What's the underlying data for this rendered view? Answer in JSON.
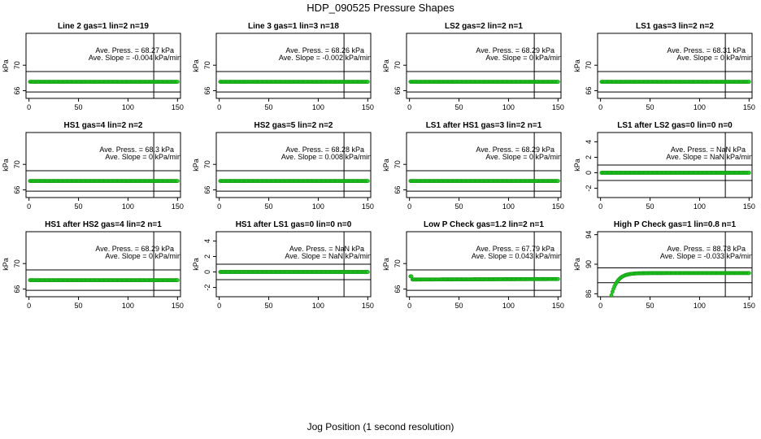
{
  "title": "HDP_090525  Pressure Shapes",
  "xlabel": "Jog Position (1 second resolution)",
  "colors": {
    "points": "#22cc22",
    "point_edge": "#119911",
    "lines": "#000000"
  },
  "chart_data": [
    {
      "type": "scatter",
      "title": "Line 2 gas=1 lin=2 n=19",
      "ylabel": "kPa",
      "xlim": [
        -3,
        153
      ],
      "ylim": [
        64.8,
        75.0
      ],
      "xticks": [
        0,
        50,
        100,
        150
      ],
      "yticks": [
        66,
        70
      ],
      "hlines": [
        65.8,
        69.0
      ],
      "vline": 126,
      "ann_press": "Ave. Press. =  68.27  kPa",
      "ann_slope": "Ave. Slope =  -0.004  kPa/min",
      "series": {
        "y_start": 67.4,
        "y_end": 67.4,
        "plateau": 67.4,
        "tau": 0
      }
    },
    {
      "type": "scatter",
      "title": "Line 3 gas=1 lin=3 n=18",
      "ylabel": "kPa",
      "xlim": [
        -3,
        153
      ],
      "ylim": [
        64.8,
        75.0
      ],
      "xticks": [
        0,
        50,
        100,
        150
      ],
      "yticks": [
        66,
        70
      ],
      "hlines": [
        65.8,
        69.0
      ],
      "vline": 126,
      "ann_press": "Ave. Press. =  68.26  kPa",
      "ann_slope": "Ave. Slope =  -0.002  kPa/min",
      "series": {
        "y_start": 67.4,
        "y_end": 67.4,
        "plateau": 67.4,
        "tau": 0
      }
    },
    {
      "type": "scatter",
      "title": "LS2 gas=2 lin=2 n=1",
      "ylabel": "kPa",
      "xlim": [
        -3,
        153
      ],
      "ylim": [
        64.8,
        75.0
      ],
      "xticks": [
        0,
        50,
        100,
        150
      ],
      "yticks": [
        66,
        70
      ],
      "hlines": [
        65.8,
        69.0
      ],
      "vline": 126,
      "ann_press": "Ave. Press. =  68.29  kPa",
      "ann_slope": "Ave. Slope =  0  kPa/min",
      "series": {
        "y_start": 67.4,
        "y_end": 67.4,
        "plateau": 67.4,
        "tau": 0
      }
    },
    {
      "type": "scatter",
      "title": "LS1 gas=3 lin=2 n=2",
      "ylabel": "kPa",
      "xlim": [
        -3,
        153
      ],
      "ylim": [
        64.8,
        75.0
      ],
      "xticks": [
        0,
        50,
        100,
        150
      ],
      "yticks": [
        66,
        70
      ],
      "hlines": [
        65.8,
        69.0
      ],
      "vline": 126,
      "ann_press": "Ave. Press. =  68.31  kPa",
      "ann_slope": "Ave. Slope =  0  kPa/min",
      "series": {
        "y_start": 67.4,
        "y_end": 67.4,
        "plateau": 67.4,
        "tau": 0
      }
    },
    {
      "type": "scatter",
      "title": "HS1 gas=4 lin=2 n=2",
      "ylabel": "kPa",
      "xlim": [
        -3,
        153
      ],
      "ylim": [
        64.8,
        75.0
      ],
      "xticks": [
        0,
        50,
        100,
        150
      ],
      "yticks": [
        66,
        70
      ],
      "hlines": [
        65.8,
        69.0
      ],
      "vline": 126,
      "ann_press": "Ave. Press. =  68.3  kPa",
      "ann_slope": "Ave. Slope =  0  kPa/min",
      "series": {
        "y_start": 67.4,
        "y_end": 67.4,
        "plateau": 67.4,
        "tau": 0
      }
    },
    {
      "type": "scatter",
      "title": "HS2 gas=5 lin=2 n=2",
      "ylabel": "kPa",
      "xlim": [
        -3,
        153
      ],
      "ylim": [
        64.8,
        75.0
      ],
      "xticks": [
        0,
        50,
        100,
        150
      ],
      "yticks": [
        66,
        70
      ],
      "hlines": [
        65.8,
        69.0
      ],
      "vline": 126,
      "ann_press": "Ave. Press. =  68.28  kPa",
      "ann_slope": "Ave. Slope =  0.008  kPa/min",
      "series": {
        "y_start": 67.4,
        "y_end": 67.4,
        "plateau": 67.4,
        "tau": 0
      }
    },
    {
      "type": "scatter",
      "title": "LS1 after HS1 gas=3 lin=2 n=1",
      "ylabel": "kPa",
      "xlim": [
        -3,
        153
      ],
      "ylim": [
        64.8,
        75.0
      ],
      "xticks": [
        0,
        50,
        100,
        150
      ],
      "yticks": [
        66,
        70
      ],
      "hlines": [
        65.8,
        69.0
      ],
      "vline": 126,
      "ann_press": "Ave. Press. =  68.29  kPa",
      "ann_slope": "Ave. Slope =  0  kPa/min",
      "series": {
        "y_start": 67.4,
        "y_end": 67.4,
        "plateau": 67.4,
        "tau": 0
      }
    },
    {
      "type": "scatter",
      "title": "LS1 after LS2 gas=0 lin=0 n=0",
      "ylabel": "kPa",
      "xlim": [
        -3,
        153
      ],
      "ylim": [
        -3.2,
        5.2
      ],
      "xticks": [
        0,
        50,
        100,
        150
      ],
      "yticks": [
        -2,
        0,
        2,
        4
      ],
      "hlines": [
        -1.0,
        1.0
      ],
      "vline": 126,
      "ann_press": "Ave. Press. =  NaN  kPa",
      "ann_slope": "Ave. Slope =  NaN  kPa/min",
      "series": {
        "y_start": 0,
        "y_end": 0,
        "plateau": 0,
        "tau": 0
      }
    },
    {
      "type": "scatter",
      "title": "HS1 after HS2 gas=4 lin=2 n=1",
      "ylabel": "kPa",
      "xlim": [
        -3,
        153
      ],
      "ylim": [
        64.8,
        75.0
      ],
      "xticks": [
        0,
        50,
        100,
        150
      ],
      "yticks": [
        66,
        70
      ],
      "hlines": [
        65.8,
        69.0
      ],
      "vline": 126,
      "ann_press": "Ave. Press. =  68.29  kPa",
      "ann_slope": "Ave. Slope =  0  kPa/min",
      "series": {
        "y_start": 67.4,
        "y_end": 67.4,
        "plateau": 67.4,
        "tau": 0
      }
    },
    {
      "type": "scatter",
      "title": "HS1 after LS1 gas=0 lin=0 n=0",
      "ylabel": "kPa",
      "xlim": [
        -3,
        153
      ],
      "ylim": [
        -3.2,
        5.2
      ],
      "xticks": [
        0,
        50,
        100,
        150
      ],
      "yticks": [
        -2,
        0,
        2,
        4
      ],
      "hlines": [
        -1.0,
        1.0
      ],
      "vline": 126,
      "ann_press": "Ave. Press. =  NaN  kPa",
      "ann_slope": "Ave. Slope =  NaN  kPa/min",
      "series": {
        "y_start": 0,
        "y_end": 0,
        "plateau": 0,
        "tau": 0
      }
    },
    {
      "type": "scatter",
      "title": "Low P Check gas=1.2 lin=2 n=1",
      "ylabel": "kPa",
      "xlim": [
        -3,
        153
      ],
      "ylim": [
        64.8,
        75.0
      ],
      "xticks": [
        0,
        50,
        100,
        150
      ],
      "yticks": [
        66,
        70
      ],
      "hlines": [
        65.8,
        69.0
      ],
      "vline": 126,
      "ann_press": "Ave. Press. =  67.79  kPa",
      "ann_slope": "Ave. Slope =  0.043  kPa/min",
      "series": {
        "y_start": 68.0,
        "y_end": 67.5,
        "plateau": 67.2,
        "tau": -2.0
      }
    },
    {
      "type": "scatter",
      "title": "High P Check gas=1 lin=0.8 n=1",
      "ylabel": "kPa",
      "xlim": [
        -3,
        153
      ],
      "ylim": [
        85.6,
        94.4
      ],
      "xticks": [
        0,
        50,
        100,
        150
      ],
      "yticks": [
        86,
        90,
        94
      ],
      "hlines": [
        87.5,
        89.5
      ],
      "vline": 126,
      "ann_press": "Ave. Press. =  88.78  kPa",
      "ann_slope": "Ave. Slope =  -0.033  kPa/min",
      "series": {
        "y_start": 85.8,
        "y_end": 88.6,
        "plateau": 88.8,
        "tau": 6.0
      }
    }
  ]
}
